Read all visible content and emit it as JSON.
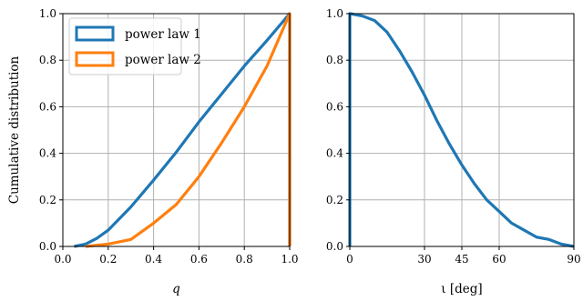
{
  "chart_data": [
    {
      "type": "line",
      "xlabel": "q",
      "ylabel": "Cumulative distribution",
      "xlim": [
        0.0,
        1.0
      ],
      "ylim": [
        0.0,
        1.0
      ],
      "grid": true,
      "legend_position": "top-left",
      "x_ticks": [
        "0.0",
        "0.2",
        "0.4",
        "0.6",
        "0.8",
        "1.0"
      ],
      "x_tick_values": [
        0.0,
        0.2,
        0.4,
        0.6,
        0.8,
        1.0
      ],
      "y_ticks": [
        "0.0",
        "0.2",
        "0.4",
        "0.6",
        "0.8",
        "1.0"
      ],
      "y_tick_values": [
        0.0,
        0.2,
        0.4,
        0.6,
        0.8,
        1.0
      ],
      "series": [
        {
          "name": "power law 1",
          "color": "#1f77b4",
          "points": [
            [
              0.05,
              0.0
            ],
            [
              0.1,
              0.01
            ],
            [
              0.15,
              0.035
            ],
            [
              0.2,
              0.07
            ],
            [
              0.3,
              0.17
            ],
            [
              0.4,
              0.285
            ],
            [
              0.5,
              0.405
            ],
            [
              0.6,
              0.535
            ],
            [
              0.7,
              0.655
            ],
            [
              0.8,
              0.775
            ],
            [
              0.9,
              0.885
            ],
            [
              1.0,
              1.0
            ],
            [
              1.0,
              0.0
            ]
          ]
        },
        {
          "name": "power law 2",
          "color": "#ff7f0e",
          "points": [
            [
              0.1,
              0.0
            ],
            [
              0.2,
              0.01
            ],
            [
              0.3,
              0.03
            ],
            [
              0.4,
              0.1
            ],
            [
              0.5,
              0.18
            ],
            [
              0.6,
              0.3
            ],
            [
              0.7,
              0.445
            ],
            [
              0.8,
              0.6
            ],
            [
              0.9,
              0.775
            ],
            [
              1.0,
              1.0
            ],
            [
              1.0,
              0.0
            ]
          ]
        }
      ]
    },
    {
      "type": "line",
      "xlabel": "ι [deg]",
      "ylabel": "",
      "xlim": [
        0,
        90
      ],
      "ylim": [
        0.0,
        1.0
      ],
      "grid": true,
      "x_ticks": [
        "0",
        "30",
        "45",
        "60",
        "90"
      ],
      "x_tick_values": [
        0,
        30,
        45,
        60,
        90
      ],
      "y_ticks": [
        "0.0",
        "0.2",
        "0.4",
        "0.6",
        "0.8",
        "1.0"
      ],
      "y_tick_values": [
        0.0,
        0.2,
        0.4,
        0.6,
        0.8,
        1.0
      ],
      "series": [
        {
          "name": "",
          "color": "#1f77b4",
          "points": [
            [
              0,
              0.0
            ],
            [
              0,
              1.0
            ],
            [
              5,
              0.99
            ],
            [
              10,
              0.97
            ],
            [
              15,
              0.92
            ],
            [
              20,
              0.84
            ],
            [
              25,
              0.75
            ],
            [
              30,
              0.65
            ],
            [
              35,
              0.54
            ],
            [
              40,
              0.44
            ],
            [
              45,
              0.35
            ],
            [
              50,
              0.27
            ],
            [
              55,
              0.2
            ],
            [
              60,
              0.15
            ],
            [
              65,
              0.1
            ],
            [
              70,
              0.07
            ],
            [
              75,
              0.04
            ],
            [
              80,
              0.03
            ],
            [
              85,
              0.01
            ],
            [
              90,
              0.0
            ]
          ]
        }
      ]
    }
  ]
}
